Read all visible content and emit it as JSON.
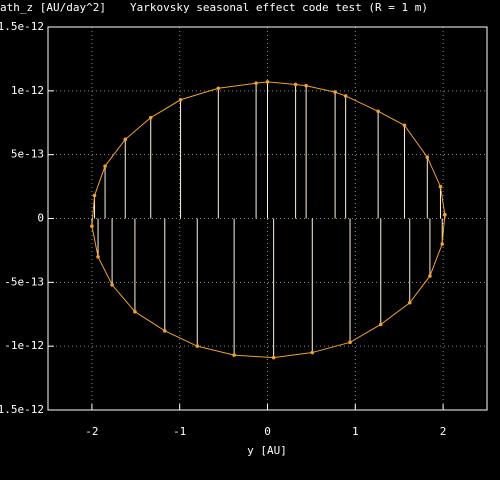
{
  "chart_data": {
    "type": "line",
    "title": "Yarkovsky seasonal effect code test (R = 1 m)",
    "y_label": "ath_z [AU/day^2]",
    "x_label": "y [AU]",
    "color": "#f0a030",
    "impulse_color": "#fff2dc",
    "grid": true,
    "impulses": true,
    "xlim": [
      -2.5,
      2.5
    ],
    "xticks": [
      -2,
      -1,
      0,
      1,
      2
    ],
    "ylim": [
      -1.5e-12,
      1.5e-12
    ],
    "yticks": [
      {
        "value": -1.5e-12,
        "label": "-1.5e-12"
      },
      {
        "value": -1e-12,
        "label": "-1e-12"
      },
      {
        "value": -5e-13,
        "label": "-5e-13"
      },
      0,
      {
        "value": 5e-13,
        "label": "5e-13"
      },
      {
        "value": 1e-12,
        "label": "1e-12"
      },
      {
        "value": 1.5e-12,
        "label": "1.5e-12"
      }
    ],
    "x": [
      2.02,
      1.97,
      1.82,
      1.56,
      1.26,
      0.89,
      0.77,
      0.44,
      0.32,
      0,
      -0.13,
      -0.56,
      -0.99,
      -1.33,
      -1.62,
      -1.85,
      -1.97,
      -2.0,
      -1.93,
      -1.77,
      -1.51,
      -1.17,
      -0.8,
      -0.38,
      0.07,
      0.51,
      0.94,
      1.29,
      1.62,
      1.85,
      1.99,
      2.02
    ],
    "values": [
      3e-14,
      2.5e-13,
      4.8e-13,
      7.3e-13,
      8.4e-13,
      9.6e-13,
      9.9e-13,
      1.04e-12,
      1.05e-12,
      1.07e-12,
      1.06e-12,
      1.02e-12,
      9.3e-13,
      7.9e-13,
      6.2e-13,
      4.1e-13,
      1.8e-13,
      -6e-14,
      -3e-13,
      -5.2e-13,
      -7.3e-13,
      -8.8e-13,
      -1e-12,
      -1.07e-12,
      -1.09e-12,
      -1.05e-12,
      -9.7e-13,
      -8.3e-13,
      -6.6e-13,
      -4.5e-13,
      -2e-13,
      3e-14
    ]
  }
}
